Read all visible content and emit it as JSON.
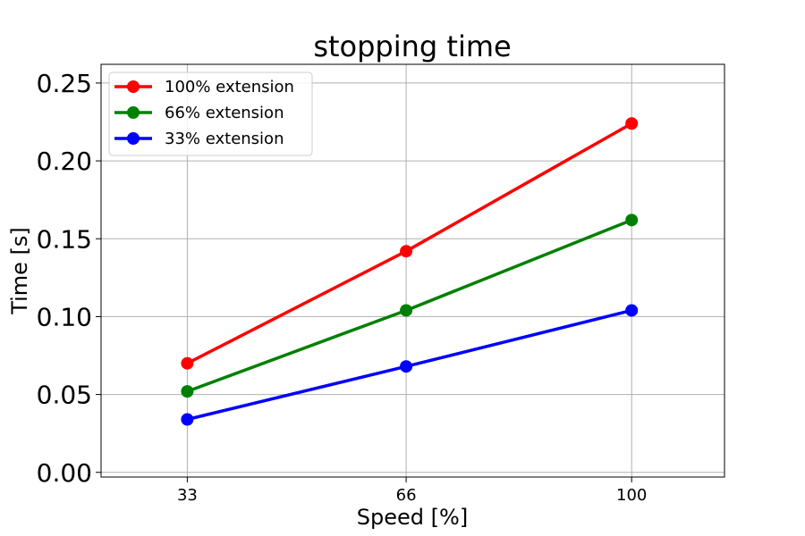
{
  "chart_data": {
    "type": "line",
    "title": "stopping time",
    "xlabel": "Speed [%]",
    "ylabel": "Time [s]",
    "x": [
      33,
      66,
      100
    ],
    "xlim": [
      20,
      114
    ],
    "xticks": [
      33,
      66,
      100
    ],
    "xtick_labels": [
      "33",
      "66",
      "100"
    ],
    "ylim": [
      -0.003,
      0.262
    ],
    "yticks": [
      0.0,
      0.05,
      0.1,
      0.15,
      0.2,
      0.25
    ],
    "ytick_labels": [
      "0.00",
      "0.05",
      "0.10",
      "0.15",
      "0.20",
      "0.25"
    ],
    "grid": true,
    "legend_position": "top-left",
    "series": [
      {
        "name": "100% extension",
        "color": "#ff0000",
        "values": [
          0.07,
          0.142,
          0.224
        ]
      },
      {
        "name": "66% extension",
        "color": "#008000",
        "values": [
          0.052,
          0.104,
          0.162
        ]
      },
      {
        "name": "33% extension",
        "color": "#0000ff",
        "values": [
          0.034,
          0.068,
          0.104
        ]
      }
    ]
  }
}
